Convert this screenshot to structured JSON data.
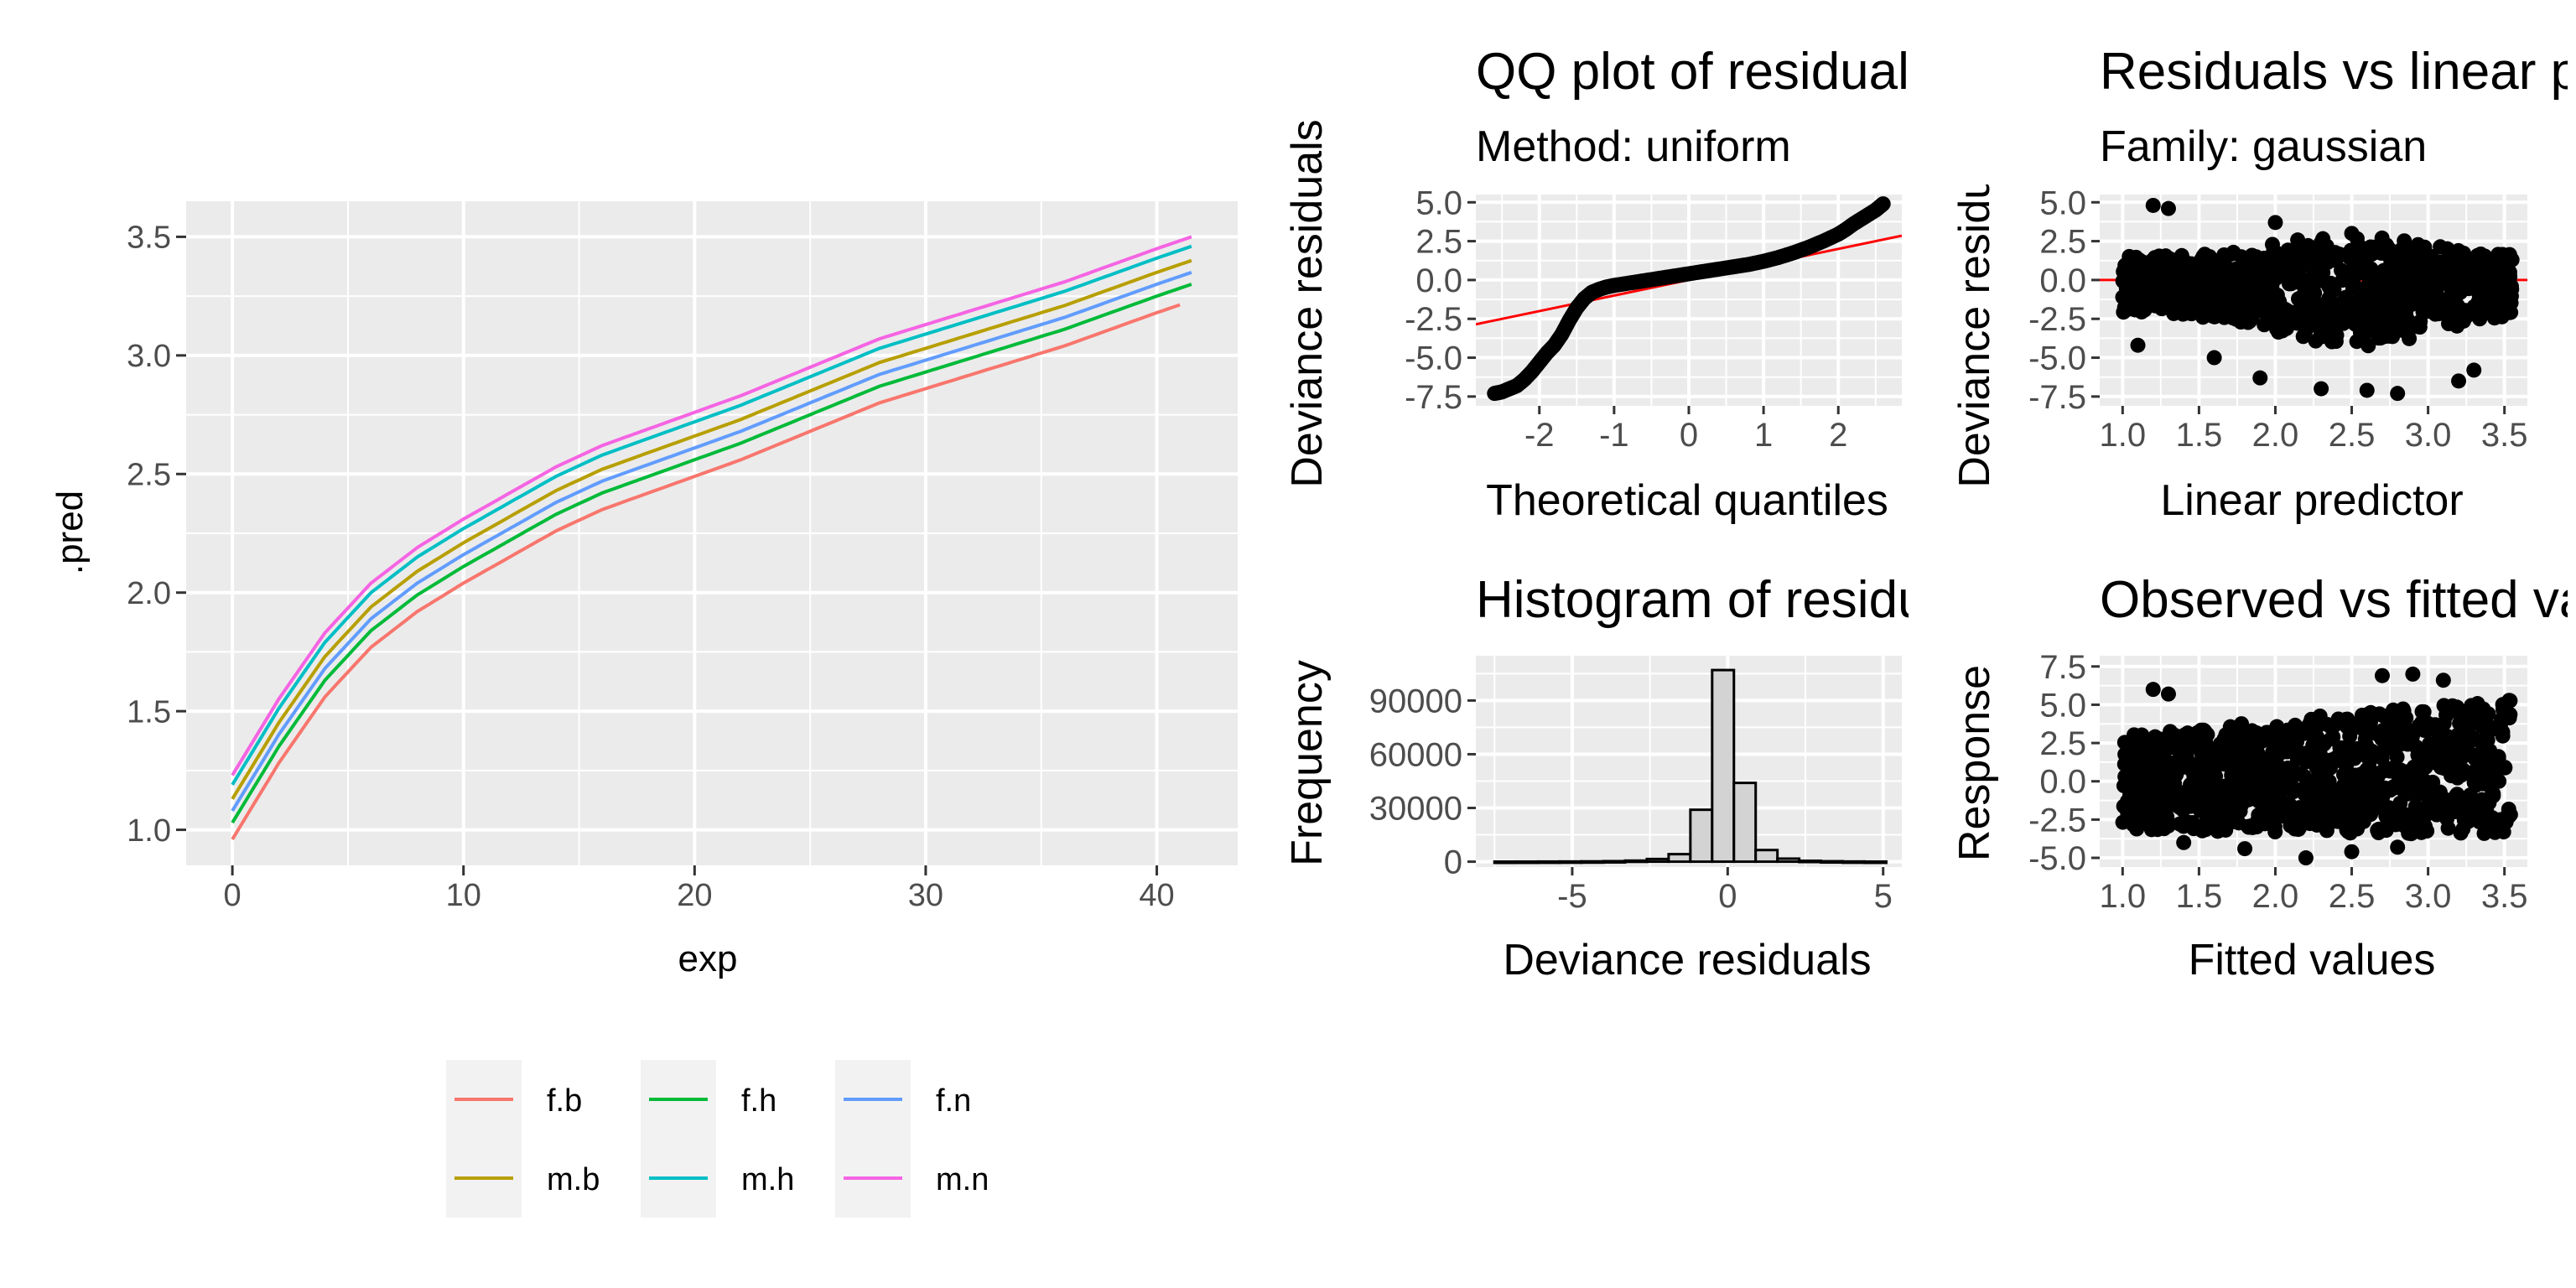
{
  "chart_data": [
    {
      "id": "pred",
      "type": "line",
      "title": "",
      "xlabel": "exp",
      "ylabel": ".pred",
      "xlim": [
        -2,
        43.5
      ],
      "ylim": [
        0.85,
        3.65
      ],
      "xticks": [
        0,
        10,
        20,
        30,
        40
      ],
      "yticks": [
        1.0,
        1.5,
        2.0,
        2.5,
        3.0,
        3.5
      ],
      "xtick_labels": [
        "0",
        "10",
        "20",
        "30",
        "40"
      ],
      "ytick_labels": [
        "1.0",
        "1.5",
        "2.0",
        "2.5",
        "3.0",
        "3.5"
      ],
      "grid": true,
      "legend_position": "bottom",
      "x": [
        0,
        2,
        4,
        6,
        8,
        10,
        12,
        14,
        16,
        18,
        20,
        22,
        24,
        26,
        28,
        30,
        32,
        34,
        36,
        38,
        40,
        41.5
      ],
      "series": [
        {
          "name": "f.b",
          "color": "#F8766D",
          "offset": 0.0,
          "x_max": 41.0
        },
        {
          "name": "m.b",
          "color": "#B79F00",
          "offset": 0.17,
          "x_max": 41.5
        },
        {
          "name": "f.h",
          "color": "#00BA38",
          "offset": 0.07,
          "x_max": 41.5
        },
        {
          "name": "m.h",
          "color": "#00BFC4",
          "offset": 0.23,
          "x_max": 41.5
        },
        {
          "name": "f.n",
          "color": "#619CFF",
          "offset": 0.12,
          "x_max": 41.5
        },
        {
          "name": "m.n",
          "color": "#F564E3",
          "offset": 0.27,
          "x_max": 41.5
        }
      ],
      "base_values": [
        0.96,
        1.28,
        1.56,
        1.77,
        1.92,
        2.04,
        2.15,
        2.26,
        2.35,
        2.42,
        2.49,
        2.56,
        2.64,
        2.72,
        2.8,
        2.86,
        2.92,
        2.98,
        3.04,
        3.11,
        3.18,
        3.23
      ]
    },
    {
      "id": "qq",
      "type": "scatter",
      "title": "QQ plot of residuals",
      "subtitle": "Method: uniform",
      "xlabel": "Theoretical quantiles",
      "ylabel": "Deviance residuals",
      "xlim": [
        -2.85,
        2.85
      ],
      "ylim": [
        -8.1,
        5.5
      ],
      "xticks": [
        -2,
        -1,
        0,
        1,
        2
      ],
      "yticks": [
        -7.5,
        -5.0,
        -2.5,
        0.0,
        2.5,
        5.0
      ],
      "xtick_labels": [
        "-2",
        "-1",
        "0",
        "1",
        "2"
      ],
      "ytick_labels": [
        "-7.5",
        "-5.0",
        "-2.5",
        "0.0",
        "2.5",
        "5.0"
      ],
      "reference_line": {
        "color": "#FF0000",
        "intercept": 0.0,
        "slope": 1.0
      },
      "points_x": [
        -2.6,
        -2.5,
        -2.4,
        -2.3,
        -2.2,
        -2.1,
        -2.0,
        -1.9,
        -1.8,
        -1.7,
        -1.6,
        -1.5,
        -1.4,
        -1.3,
        -1.2,
        -1.1,
        -1.0,
        -0.8,
        -0.6,
        -0.4,
        -0.2,
        0.0,
        0.2,
        0.4,
        0.6,
        0.8,
        1.0,
        1.2,
        1.4,
        1.6,
        1.8,
        2.0,
        2.1,
        2.2,
        2.3,
        2.4,
        2.5,
        2.55,
        2.6
      ],
      "points_y": [
        -7.3,
        -7.2,
        -7.0,
        -6.8,
        -6.4,
        -5.9,
        -5.3,
        -4.7,
        -4.2,
        -3.5,
        -2.6,
        -1.8,
        -1.2,
        -0.8,
        -0.6,
        -0.45,
        -0.35,
        -0.2,
        -0.05,
        0.1,
        0.25,
        0.4,
        0.55,
        0.7,
        0.85,
        1.0,
        1.2,
        1.45,
        1.75,
        2.1,
        2.5,
        2.95,
        3.25,
        3.6,
        3.9,
        4.2,
        4.5,
        4.7,
        4.9
      ],
      "point_color": "#000000"
    },
    {
      "id": "resid_vs_lp",
      "type": "scatter",
      "title": "Residuals vs linear predictor",
      "subtitle": "Family: gaussian",
      "xlabel": "Linear predictor",
      "ylabel": "Deviance residuals",
      "xlim": [
        0.85,
        3.65
      ],
      "ylim": [
        -8.1,
        5.5
      ],
      "xticks": [
        1.0,
        1.5,
        2.0,
        2.5,
        3.0,
        3.5
      ],
      "yticks": [
        -7.5,
        -5.0,
        -2.5,
        0.0,
        2.5,
        5.0
      ],
      "xtick_labels": [
        "1.0",
        "1.5",
        "2.0",
        "2.5",
        "3.0",
        "3.5"
      ],
      "ytick_labels": [
        "-7.5",
        "-5.0",
        "-2.5",
        "0.0",
        "2.5",
        "5.0"
      ],
      "reference_line": {
        "color": "#FF0000",
        "y": 0.0
      },
      "cloud_x_range": [
        1.0,
        3.55
      ],
      "cloud_y_center": -0.3,
      "cloud_y_halfspread": 2.6,
      "outlier_points": [
        [
          1.2,
          4.8
        ],
        [
          1.3,
          4.6
        ],
        [
          2.0,
          3.7
        ],
        [
          2.5,
          3.0
        ],
        [
          1.9,
          -6.3
        ],
        [
          2.3,
          -7.0
        ],
        [
          2.6,
          -7.1
        ],
        [
          2.8,
          -7.3
        ],
        [
          3.2,
          -6.5
        ],
        [
          3.3,
          -5.8
        ],
        [
          1.1,
          -4.2
        ],
        [
          1.6,
          -5.0
        ]
      ],
      "point_color": "#000000"
    },
    {
      "id": "hist",
      "type": "bar",
      "title": "Histogram of residuals",
      "xlabel": "Deviance residuals",
      "ylabel": "Frequency",
      "xlim": [
        -8.1,
        5.6
      ],
      "ylim": [
        -3000,
        115000
      ],
      "xticks": [
        -5,
        0,
        5
      ],
      "yticks": [
        0,
        30000,
        60000,
        90000
      ],
      "xtick_labels": [
        "-5",
        "0",
        "5"
      ],
      "ytick_labels": [
        "0",
        "30000",
        "60000",
        "90000"
      ],
      "bin_edges": [
        -7.5,
        -6.8,
        -6.1,
        -5.4,
        -4.7,
        -4.0,
        -3.3,
        -2.6,
        -1.9,
        -1.2,
        -0.5,
        0.2,
        0.9,
        1.6,
        2.3,
        3.0,
        3.7,
        4.4,
        5.1
      ],
      "counts": [
        40,
        60,
        90,
        120,
        180,
        300,
        600,
        1500,
        4200,
        29000,
        107000,
        44000,
        6500,
        1700,
        500,
        250,
        120,
        60
      ],
      "bar_fill": "#D3D3D3",
      "bar_stroke": "#000000"
    },
    {
      "id": "obs_vs_fit",
      "type": "scatter",
      "title": "Observed vs fitted values",
      "xlabel": "Fitted values",
      "ylabel": "Response",
      "xlim": [
        0.85,
        3.65
      ],
      "ylim": [
        -5.6,
        8.2
      ],
      "xticks": [
        1.0,
        1.5,
        2.0,
        2.5,
        3.0,
        3.5
      ],
      "yticks": [
        -5.0,
        -2.5,
        0.0,
        2.5,
        5.0,
        7.5
      ],
      "xtick_labels": [
        "1.0",
        "1.5",
        "2.0",
        "2.5",
        "3.0",
        "3.5"
      ],
      "ytick_labels": [
        "-5.0",
        "-2.5",
        "0.0",
        "2.5",
        "5.0",
        "7.5"
      ],
      "cloud_x_range": [
        1.0,
        3.55
      ],
      "cloud_lower": [
        -3.2,
        -3.5
      ],
      "cloud_upper": [
        3.0,
        5.5
      ],
      "outlier_points": [
        [
          1.2,
          6.0
        ],
        [
          1.3,
          5.7
        ],
        [
          2.7,
          6.9
        ],
        [
          2.9,
          7.0
        ],
        [
          3.1,
          6.6
        ],
        [
          1.8,
          -4.4
        ],
        [
          2.2,
          -5.0
        ],
        [
          2.5,
          -4.6
        ],
        [
          2.8,
          -4.3
        ],
        [
          1.4,
          -4.0
        ]
      ],
      "point_color": "#000000"
    }
  ]
}
